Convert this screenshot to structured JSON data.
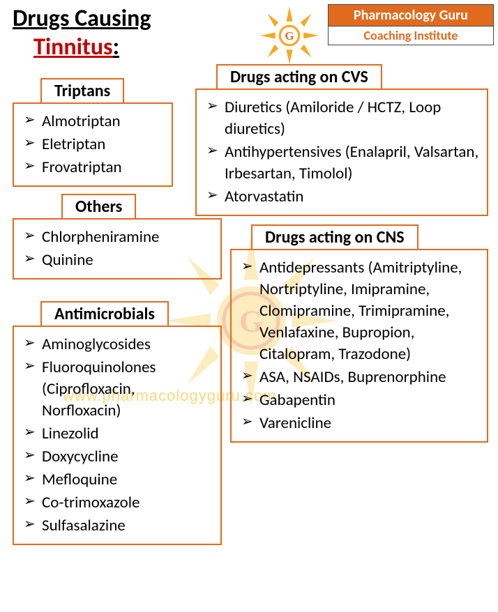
{
  "brand": {
    "line1": "Pharmacology Guru",
    "line2": "Coaching Institute"
  },
  "title": {
    "line1": "Drugs Causing",
    "line2": "Tinnitus",
    "color_highlight": "#c00000"
  },
  "watermark_url": "www.pharmacologyguru.com",
  "colors": {
    "box_border": "#e06b1f",
    "brand_bg": "#e06b1f",
    "sun": "#f7c948"
  },
  "groups": {
    "triptans": {
      "title": "Triptans",
      "items": [
        "Almotriptan",
        "Eletriptan",
        "Frovatriptan"
      ]
    },
    "cvs": {
      "title": "Drugs acting on CVS",
      "items": [
        "Diuretics (Amiloride / HCTZ, Loop diuretics)",
        "Antihypertensives (Enalapril, Valsartan, Irbesartan, Timolol)",
        "Atorvastatin"
      ]
    },
    "others": {
      "title": "Others",
      "items": [
        "Chlorpheniramine",
        "Quinine"
      ]
    },
    "cns": {
      "title": "Drugs acting on CNS",
      "items": [
        "Antidepressants (Amitriptyline, Nortriptyline, Imipramine, Clomipramine, Trimipramine, Venlafaxine, Bupropion, Citalopram, Trazodone)",
        "ASA, NSAIDs, Buprenorphine",
        "Gabapentin",
        "Varenicline"
      ]
    },
    "antimicrobials": {
      "title": "Antimicrobials",
      "items": [
        "Aminoglycosides",
        "Fluoroquinolones (Ciprofloxacin, Norfloxacin)",
        "Linezolid",
        "Doxycycline",
        "Mefloquine",
        "Co-trimoxazole",
        "Sulfasalazine"
      ]
    }
  }
}
